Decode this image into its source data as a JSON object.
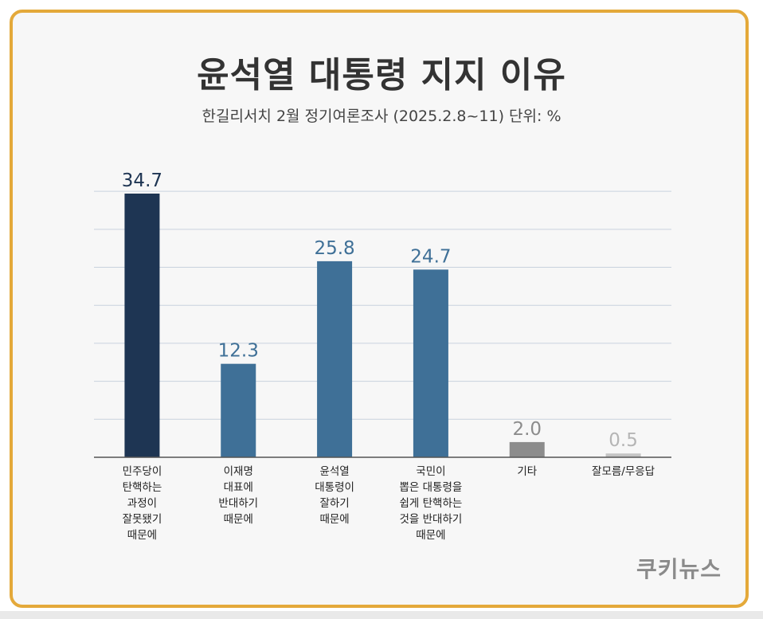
{
  "header": {
    "title": "윤석열 대통령 지지 이유",
    "subtitle": "한길리서치 2월 정기여론조사 (2025.2.8~11) 단위: %"
  },
  "logo": {
    "text": "쿠키뉴스"
  },
  "chart_data": {
    "type": "bar",
    "title": "윤석열 대통령 지지 이유",
    "subtitle": "한길리서치 2월 정기여론조사 (2025.2.8~11) 단위: %",
    "categories": [
      [
        "민주당이",
        "탄핵하는",
        "과정이",
        "잘못됐기",
        "때문에"
      ],
      [
        "이재명",
        "대표에",
        "반대하기",
        "때문에"
      ],
      [
        "윤석열",
        "대통령이",
        "잘하기",
        "때문에"
      ],
      [
        "국민이",
        "뽑은 대통령을",
        "쉽게 탄핵하는",
        "것을 반대하기",
        "때문에"
      ],
      [
        "기타"
      ],
      [
        "잘모름/무응답"
      ]
    ],
    "values": [
      34.7,
      12.3,
      25.8,
      24.7,
      2.0,
      0.5
    ],
    "value_labels": [
      "34.7",
      "12.3",
      "25.8",
      "24.7",
      "2.0",
      "0.5"
    ],
    "bar_colors": [
      "#1e3553",
      "#3f7097",
      "#3f7097",
      "#3f7097",
      "#8c8c8c",
      "#c4c4c4"
    ],
    "label_colors": [
      "#1e3553",
      "#3f7097",
      "#3f7097",
      "#3f7097",
      "#8c8c8c",
      "#b5b5b5"
    ],
    "ylim": [
      0,
      35
    ],
    "grid": true,
    "grid_color": "#c9d2de",
    "xlabel": "",
    "ylabel": ""
  }
}
